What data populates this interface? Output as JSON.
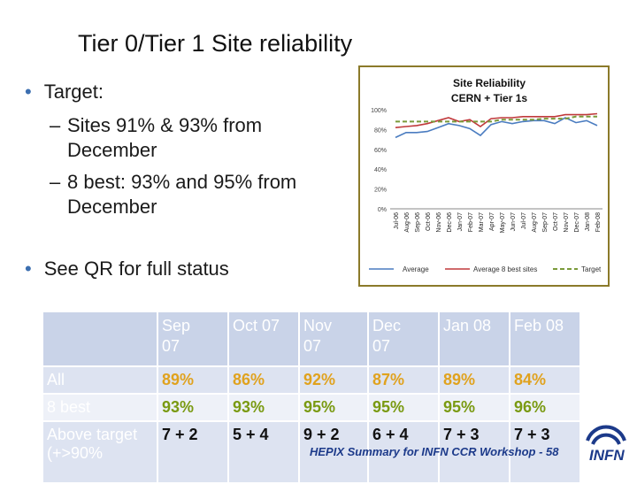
{
  "slide": {
    "title": "Tier 0/Tier 1 Site reliability",
    "bullets": {
      "target": "Target:",
      "sub1_line1": "Sites 91% & 93% from",
      "sub1_line2": "December",
      "sub2_line1": "8 best: 93% and 95% from",
      "sub2_line2": "December",
      "qr": "See QR for full status"
    },
    "footer": "HEPIX Summary for INFN CCR Workshop - 58",
    "logo_text": "INFN"
  },
  "table": {
    "headers": [
      {
        "l1": "Sep",
        "l2": "07"
      },
      {
        "l1": "Oct 07",
        "l2": ""
      },
      {
        "l1": "Nov",
        "l2": "07"
      },
      {
        "l1": "Dec",
        "l2": "07"
      },
      {
        "l1": "Jan 08",
        "l2": ""
      },
      {
        "l1": "Feb 08",
        "l2": ""
      }
    ],
    "rows": [
      {
        "label": "All",
        "values": [
          "89%",
          "86%",
          "92%",
          "87%",
          "89%",
          "84%"
        ]
      },
      {
        "label": "8 best",
        "values": [
          "93%",
          "93%",
          "95%",
          "95%",
          "95%",
          "96%"
        ]
      },
      {
        "label": "Above target (+>90%",
        "values": [
          "7 + 2",
          "5 + 4",
          "9 + 2",
          "6 + 4",
          "7 + 3",
          "7 + 3"
        ]
      }
    ]
  },
  "chart_data": {
    "type": "line",
    "title": "Site Reliability CERN + Tier 1s",
    "title_l1": "Site Reliability",
    "title_l2": "CERN + Tier 1s",
    "categories": [
      "Jul-06",
      "Aug-06",
      "Sep-06",
      "Oct-06",
      "Nov-06",
      "Dec-06",
      "Jan-07",
      "Feb-07",
      "Mar-07",
      "Apr-07",
      "May-07",
      "Jun-07",
      "Jul-07",
      "Aug-07",
      "Sep-07",
      "Oct-07",
      "Nov-07",
      "Dec-07",
      "Jan-08",
      "Feb-08"
    ],
    "yticks": [
      "0%",
      "20%",
      "40%",
      "60%",
      "80%",
      "100%"
    ],
    "ylim": [
      0,
      100
    ],
    "legend_position": "bottom",
    "series": [
      {
        "name": "Average",
        "color": "#4a7cc0",
        "values": [
          72,
          77,
          77,
          78,
          82,
          86,
          84,
          81,
          74,
          85,
          88,
          86,
          88,
          89,
          89,
          86,
          92,
          87,
          89,
          84
        ]
      },
      {
        "name": "Average 8 best sites",
        "color": "#c0393b",
        "values": [
          82,
          83,
          84,
          86,
          89,
          92,
          88,
          90,
          83,
          91,
          92,
          92,
          93,
          93,
          93,
          93,
          95,
          95,
          95,
          96
        ]
      },
      {
        "name": "Target",
        "color": "#7a9a3a",
        "values": [
          88,
          88,
          88,
          88,
          88,
          88,
          88,
          88,
          88,
          88,
          90,
          90,
          90,
          90,
          91,
          91,
          91,
          93,
          93,
          93
        ]
      }
    ]
  }
}
